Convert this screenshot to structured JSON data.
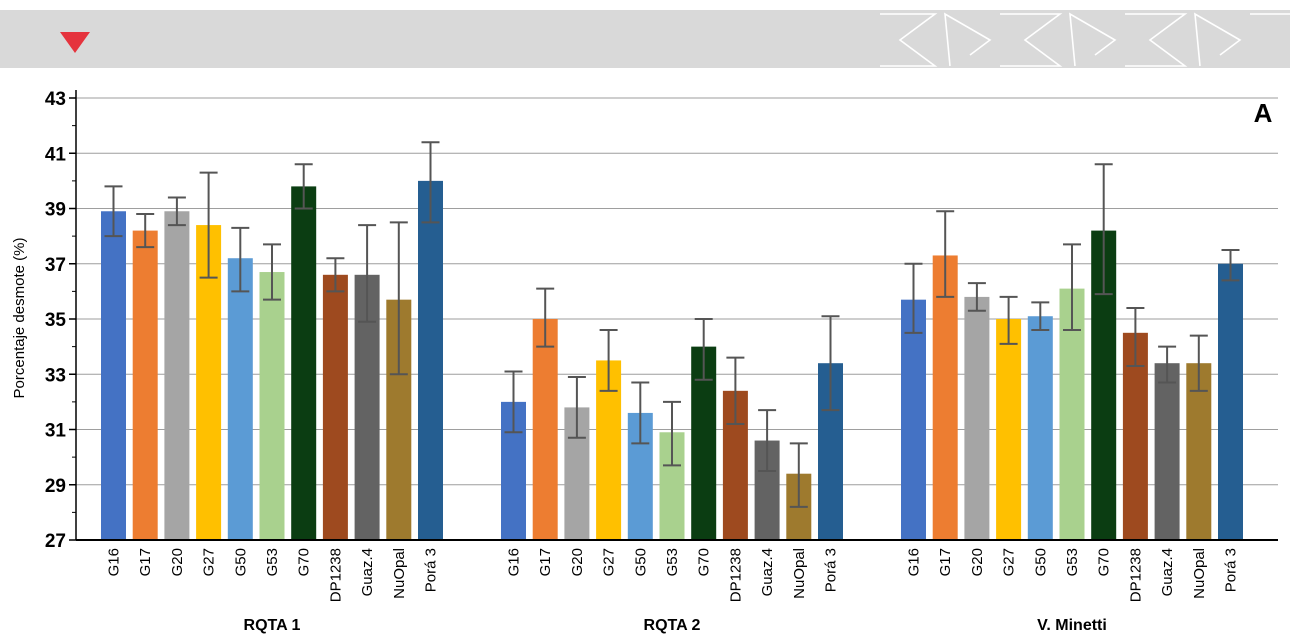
{
  "panel_label": "A",
  "colors": {
    "header_band": "#d9d9d9",
    "header_marker": "#e5333d",
    "header_ornament": "#ffffff",
    "gridline": "#9e9e9e",
    "axis": "#000000",
    "error_bar": "#555555"
  },
  "header": {
    "marker_icon": "down-triangle-icon",
    "ornament_icon": "chevron-pattern-icon"
  },
  "chart_data": {
    "type": "bar",
    "title": "",
    "xlabel": "",
    "ylabel": "Porcentaje desmote (%)",
    "ylim": [
      27,
      43
    ],
    "yticks": [
      27,
      29,
      31,
      33,
      35,
      37,
      39,
      41,
      43
    ],
    "grid": true,
    "legend": "none",
    "categories": [
      "G16",
      "G17",
      "G20",
      "G27",
      "G50",
      "G53",
      "G70",
      "DP1238",
      "Guaz.4",
      "NuOpal",
      "Porá 3"
    ],
    "category_colors": [
      "#4472c4",
      "#ed7d31",
      "#a5a5a5",
      "#ffc000",
      "#5b9bd5",
      "#a9d18e",
      "#0b3d12",
      "#9e4a1f",
      "#636363",
      "#9e7a2e",
      "#255e91"
    ],
    "groups": [
      {
        "label": "RQTA 1",
        "values": [
          38.9,
          38.2,
          38.9,
          38.4,
          37.2,
          36.7,
          39.8,
          36.6,
          36.6,
          35.7,
          40.0
        ],
        "err_low": [
          38.0,
          37.6,
          38.4,
          36.5,
          36.0,
          35.7,
          39.0,
          36.0,
          34.9,
          33.0,
          38.5
        ],
        "err_high": [
          39.8,
          38.8,
          39.4,
          40.3,
          38.3,
          37.7,
          40.6,
          37.2,
          38.4,
          38.5,
          41.4
        ]
      },
      {
        "label": "RQTA 2",
        "values": [
          32.0,
          35.0,
          31.8,
          33.5,
          31.6,
          30.9,
          34.0,
          32.4,
          30.6,
          29.4,
          33.4
        ],
        "err_low": [
          30.9,
          34.0,
          30.7,
          32.4,
          30.5,
          29.7,
          32.8,
          31.2,
          29.5,
          28.2,
          31.7
        ],
        "err_high": [
          33.1,
          36.1,
          32.9,
          34.6,
          32.7,
          32.0,
          35.0,
          33.6,
          31.7,
          30.5,
          35.1
        ]
      },
      {
        "label": "V. Minetti",
        "values": [
          35.7,
          37.3,
          35.8,
          35.0,
          35.1,
          36.1,
          38.2,
          34.5,
          33.4,
          33.4,
          37.0
        ],
        "err_low": [
          34.5,
          35.8,
          35.3,
          34.1,
          34.6,
          34.6,
          35.9,
          33.3,
          32.7,
          32.4,
          36.4
        ],
        "err_high": [
          37.0,
          38.9,
          36.3,
          35.8,
          35.6,
          37.7,
          40.6,
          35.4,
          34.0,
          34.4,
          37.5
        ]
      }
    ]
  }
}
